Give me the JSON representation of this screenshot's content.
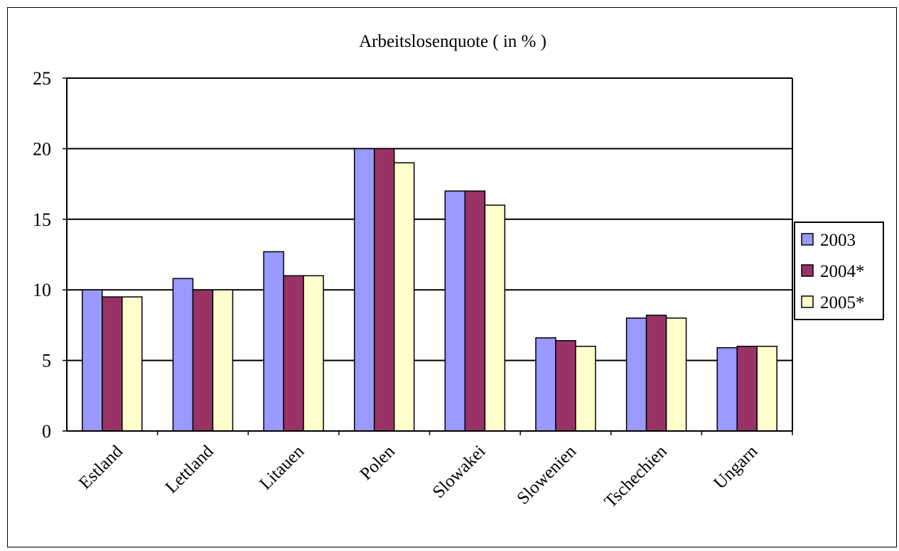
{
  "chart_data": {
    "type": "bar",
    "title": "Arbeitslosenquote ( in % )",
    "xlabel": "",
    "ylabel": "",
    "ylim": [
      0,
      25
    ],
    "yticks": [
      "0",
      "5",
      "10",
      "15",
      "20",
      "25"
    ],
    "grid": true,
    "legend_position": "right",
    "categories": [
      "Estland",
      "Lettland",
      "Litauen",
      "Polen",
      "Slowakei",
      "Slowenien",
      "Tschechien",
      "Ungarn"
    ],
    "series": [
      {
        "name": "2003",
        "color": "#9999ff",
        "values": [
          10.0,
          10.8,
          12.7,
          20.0,
          17.0,
          6.6,
          8.0,
          5.9
        ]
      },
      {
        "name": "2004*",
        "color": "#993366",
        "values": [
          9.5,
          10.0,
          11.0,
          20.0,
          17.0,
          6.4,
          8.2,
          6.0
        ]
      },
      {
        "name": "2005*",
        "color": "#ffffcc",
        "values": [
          9.5,
          10.0,
          11.0,
          19.0,
          16.0,
          6.0,
          8.0,
          6.0
        ]
      }
    ]
  }
}
